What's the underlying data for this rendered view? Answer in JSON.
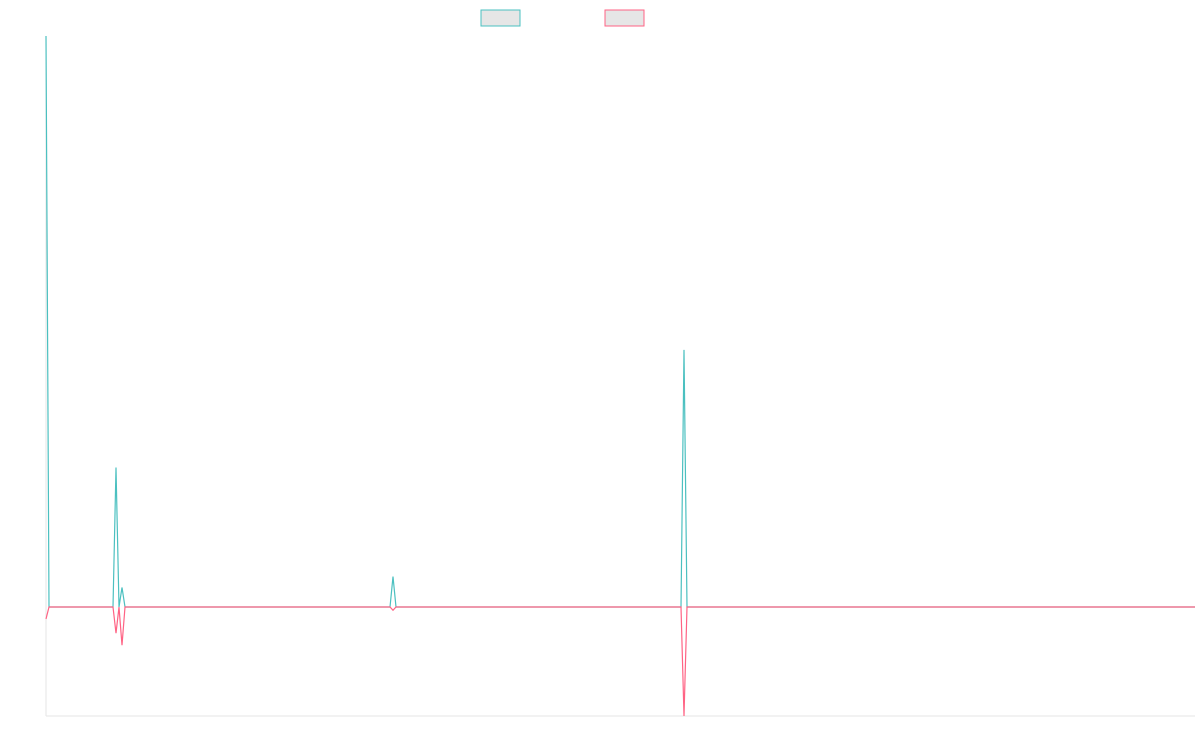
{
  "chart_data": {
    "type": "line",
    "x": [
      0,
      3,
      67,
      70,
      73,
      76,
      79,
      344,
      347,
      350,
      635,
      638,
      641,
      1149
    ],
    "xlim": [
      0,
      1149
    ],
    "ylim": [
      -100,
      524
    ],
    "series": [
      {
        "color": "#4bc0c0",
        "values": [
          524,
          0,
          0,
          128,
          0,
          18,
          0,
          0,
          28,
          0,
          0,
          236,
          0,
          0
        ]
      },
      {
        "color": "#ff6384",
        "values": [
          -11,
          0,
          0,
          -24,
          0,
          -35,
          0,
          0,
          -3,
          0,
          0,
          -100,
          0,
          0
        ]
      }
    ]
  }
}
